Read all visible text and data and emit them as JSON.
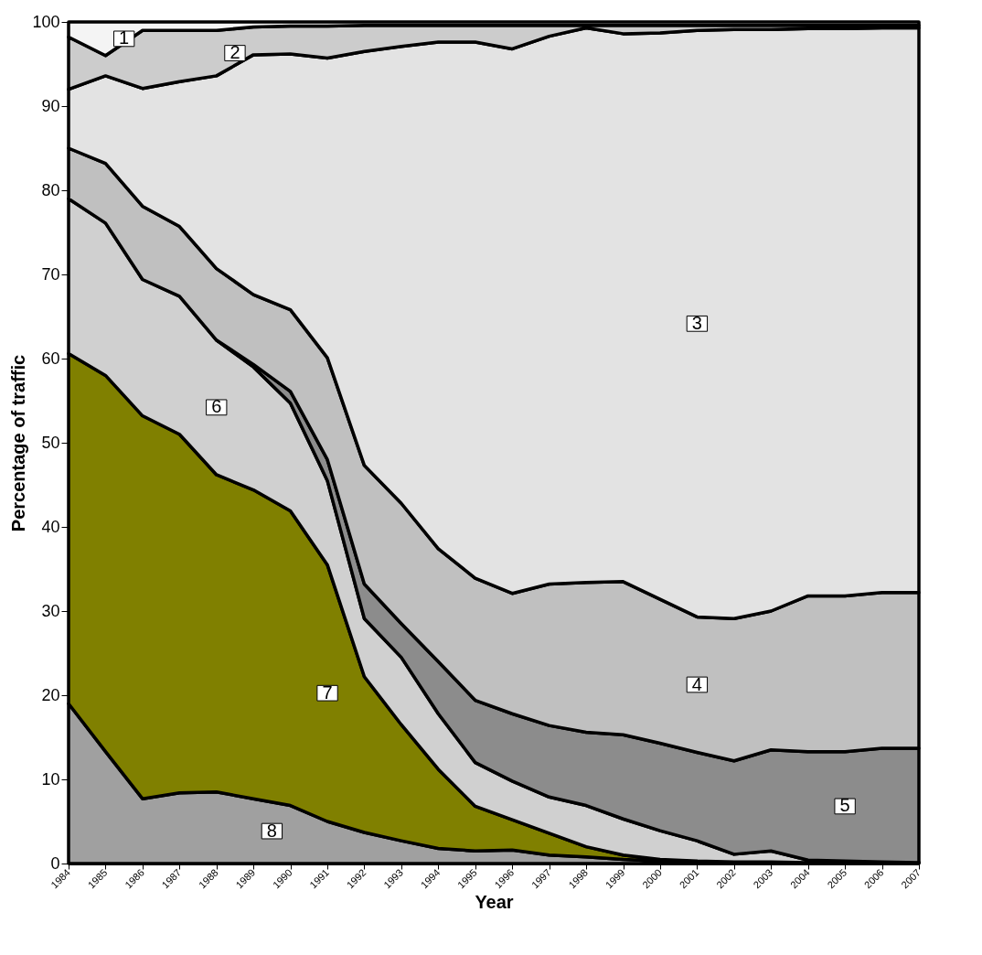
{
  "chart_data": {
    "type": "area",
    "stacked": true,
    "xlabel": "Year",
    "ylabel": "Percentage of traffic",
    "grid": false,
    "x": [
      1984,
      1985,
      1986,
      1987,
      1988,
      1989,
      1990,
      1991,
      1992,
      1993,
      1994,
      1995,
      1996,
      1997,
      1998,
      1999,
      2000,
      2001,
      2002,
      2003,
      2004,
      2005,
      2006,
      2007
    ],
    "xlim": [
      1984,
      2007
    ],
    "xticks": [
      1984,
      1985,
      1986,
      1987,
      1988,
      1989,
      1990,
      1991,
      1992,
      1993,
      1994,
      1995,
      1996,
      1997,
      1998,
      1999,
      2000,
      2001,
      2002,
      2003,
      2004,
      2005,
      2006,
      2007
    ],
    "ylim": [
      0,
      100
    ],
    "yticks": [
      0,
      10,
      20,
      30,
      40,
      50,
      60,
      70,
      80,
      90,
      100
    ],
    "series": [
      {
        "name": "8",
        "color": "#a0a0a0",
        "values": [
          19.0,
          13.3,
          7.7,
          8.4,
          8.5,
          7.7,
          6.9,
          5.0,
          3.7,
          2.7,
          1.8,
          1.5,
          1.6,
          1.0,
          0.8,
          0.5,
          0.3,
          0.2,
          0.1,
          0.1,
          0.1,
          0.1,
          0.1,
          0.1
        ]
      },
      {
        "name": "7",
        "color": "#808000",
        "values": [
          41.6,
          44.7,
          45.5,
          42.6,
          37.7,
          36.7,
          35.0,
          30.5,
          18.5,
          13.8,
          9.4,
          5.3,
          3.6,
          2.6,
          1.2,
          0.5,
          0.2,
          0.1,
          0.1,
          0.1,
          0,
          0,
          0,
          0
        ]
      },
      {
        "name": "6",
        "color": "#d0d0d0",
        "values": [
          18.4,
          18.1,
          16.2,
          16.4,
          16.0,
          14.6,
          12.8,
          10.0,
          6.9,
          8.0,
          6.6,
          5.2,
          4.6,
          4.3,
          4.9,
          4.3,
          3.4,
          2.4,
          0.9,
          1.3,
          0.3,
          0.2,
          0.1,
          0
        ]
      },
      {
        "name": "5",
        "color": "#8c8c8c",
        "values": [
          null,
          null,
          null,
          null,
          0,
          0.3,
          1.4,
          2.5,
          4.1,
          4.0,
          6.2,
          7.4,
          8.0,
          8.5,
          8.7,
          10.0,
          10.4,
          10.5,
          11.1,
          12.0,
          12.9,
          13.0,
          13.5,
          13.6
        ]
      },
      {
        "name": "4",
        "color": "#c0c0c0",
        "values": [
          6.0,
          7.1,
          8.7,
          8.3,
          8.5,
          8.3,
          9.7,
          12.1,
          14.1,
          14.3,
          13.4,
          14.5,
          14.3,
          16.8,
          17.8,
          18.2,
          17.1,
          16.1,
          16.9,
          16.5,
          18.5,
          18.5,
          18.5,
          18.5
        ]
      },
      {
        "name": "3",
        "color": "#e3e3e3",
        "values": [
          7.0,
          10.4,
          14.0,
          17.2,
          22.9,
          28.5,
          30.4,
          35.6,
          49.2,
          54.3,
          60.2,
          63.7,
          64.7,
          65.1,
          65.9,
          65.1,
          67.3,
          69.7,
          70.0,
          69.1,
          67.4,
          67.4,
          67.1,
          67.1
        ]
      },
      {
        "name": "2",
        "color": "#cccccc",
        "values": [
          6.2,
          2.4,
          6.9,
          6.1,
          5.4,
          3.3,
          3.3,
          3.8,
          3.1,
          2.5,
          2.0,
          2.0,
          2.8,
          1.3,
          0.3,
          1.0,
          0.9,
          0.6,
          0.5,
          0.5,
          0.4,
          0.4,
          0.3,
          0.3
        ]
      },
      {
        "name": "1",
        "color": "#f4f4f4",
        "values": [
          1.8,
          4.0,
          1.0,
          1.0,
          1.0,
          0.6,
          0.5,
          0.5,
          0.4,
          0.4,
          0.4,
          0.4,
          0.4,
          0.4,
          0.4,
          0.4,
          0.4,
          0.4,
          0.4,
          0.4,
          0.4,
          0.4,
          0.4,
          0.4
        ]
      }
    ]
  }
}
